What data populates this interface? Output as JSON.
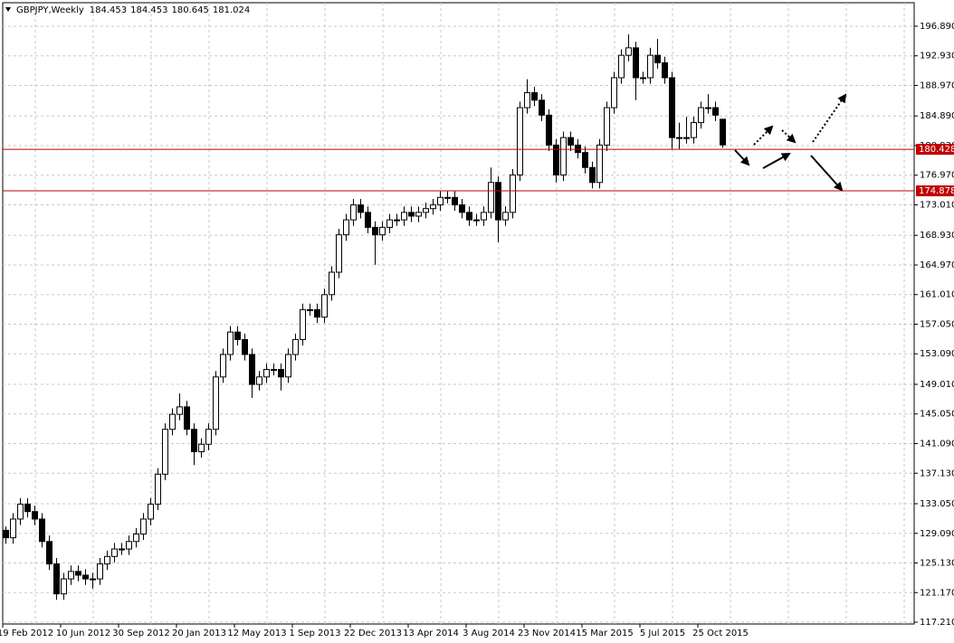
{
  "chart_data": {
    "type": "candlestick",
    "title": "GBPJPY,Weekly",
    "candles": [
      [
        129.5,
        130.0,
        127.7,
        128.5
      ],
      [
        128.5,
        131.8,
        127.7,
        131
      ],
      [
        131,
        133.8,
        130.2,
        133
      ],
      [
        133,
        133.8,
        131.2,
        132
      ],
      [
        132,
        132.8,
        130.2,
        131
      ],
      [
        131,
        131.8,
        127.2,
        128
      ],
      [
        128,
        128.8,
        124.2,
        125
      ],
      [
        125,
        125.8,
        120.2,
        121
      ],
      [
        121,
        123.8,
        120.2,
        123
      ],
      [
        123,
        124.8,
        122.2,
        124
      ],
      [
        124,
        124.8,
        122.7,
        123.5
      ],
      [
        123.5,
        124.3,
        122.2,
        123
      ],
      [
        123,
        123.8,
        121.7,
        123
      ],
      [
        123,
        125.8,
        122.2,
        125
      ],
      [
        125,
        126.8,
        124.2,
        126
      ],
      [
        126,
        127.8,
        125.2,
        127
      ],
      [
        127,
        127.8,
        126.2,
        127
      ],
      [
        127,
        128.8,
        126.2,
        128
      ],
      [
        128,
        129.8,
        127.2,
        129
      ],
      [
        129,
        131.8,
        128.2,
        131
      ],
      [
        131,
        133.8,
        130.2,
        133
      ],
      [
        133,
        137.8,
        132.2,
        137
      ],
      [
        137,
        143.8,
        136.2,
        143
      ],
      [
        143,
        145.8,
        142.2,
        145
      ],
      [
        145,
        147.8,
        144.2,
        146
      ],
      [
        146,
        146.8,
        142.2,
        143
      ],
      [
        143,
        143.8,
        138.2,
        140
      ],
      [
        140,
        141.8,
        139.2,
        141
      ],
      [
        141,
        143.8,
        140.2,
        143
      ],
      [
        143,
        150.8,
        142.2,
        150
      ],
      [
        150,
        153.8,
        149.2,
        153
      ],
      [
        153,
        156.8,
        152.2,
        156
      ],
      [
        156,
        156.8,
        154.2,
        155
      ],
      [
        155,
        155.8,
        152.2,
        153
      ],
      [
        153,
        153.8,
        147.2,
        149
      ],
      [
        149,
        150.8,
        148.2,
        150
      ],
      [
        150,
        151.8,
        149.2,
        151
      ],
      [
        151,
        151.8,
        150.2,
        151
      ],
      [
        151,
        151.8,
        148.2,
        150
      ],
      [
        150,
        153.8,
        149.2,
        153
      ],
      [
        153,
        155.8,
        152.2,
        155
      ],
      [
        155,
        159.8,
        154.2,
        159
      ],
      [
        159,
        159.8,
        158.2,
        159
      ],
      [
        159,
        159.8,
        157.2,
        158
      ],
      [
        158,
        161.8,
        157.2,
        161
      ],
      [
        161,
        164.8,
        160.2,
        164
      ],
      [
        164,
        169.8,
        163.2,
        169
      ],
      [
        169,
        171.8,
        168.2,
        171
      ],
      [
        171,
        173.8,
        170.2,
        173
      ],
      [
        173,
        173.8,
        171.2,
        172
      ],
      [
        172,
        172.8,
        169.2,
        170
      ],
      [
        170,
        170.8,
        165,
        169
      ],
      [
        169,
        170.8,
        168.2,
        170
      ],
      [
        170,
        171.8,
        169.2,
        171
      ],
      [
        171,
        171.8,
        170.2,
        171
      ],
      [
        171,
        172.8,
        170.2,
        172
      ],
      [
        172,
        172.8,
        170.7,
        171.5
      ],
      [
        171.5,
        172.8,
        170.7,
        172
      ],
      [
        172,
        173.3,
        171.2,
        172.5
      ],
      [
        172.5,
        173.8,
        171.7,
        173
      ],
      [
        173,
        174.8,
        172.2,
        174
      ],
      [
        174,
        174.8,
        173.2,
        174
      ],
      [
        174,
        174.8,
        172.2,
        173
      ],
      [
        173,
        173.8,
        171.2,
        172
      ],
      [
        172,
        172.8,
        170.2,
        171
      ],
      [
        171,
        171.8,
        170.2,
        171
      ],
      [
        171,
        172.8,
        170.2,
        172
      ],
      [
        172,
        178,
        171.2,
        176
      ],
      [
        176,
        176.8,
        168,
        171
      ],
      [
        171,
        172.8,
        170.2,
        172
      ],
      [
        172,
        177.8,
        171.2,
        177
      ],
      [
        177,
        186.8,
        176.2,
        186
      ],
      [
        186,
        189.8,
        185.2,
        188
      ],
      [
        188,
        188.8,
        186.2,
        187
      ],
      [
        187,
        187.8,
        184.2,
        185
      ],
      [
        185,
        185.8,
        180.2,
        181
      ],
      [
        181,
        181.8,
        176,
        177
      ],
      [
        177,
        182.8,
        176.2,
        182
      ],
      [
        182,
        182.8,
        180.2,
        181
      ],
      [
        181,
        181.8,
        179.2,
        180
      ],
      [
        180,
        180.8,
        177.2,
        178
      ],
      [
        178,
        178.8,
        175.2,
        176
      ],
      [
        176,
        181.8,
        175.2,
        181
      ],
      [
        181,
        186.8,
        180.2,
        186
      ],
      [
        186,
        190.8,
        185.2,
        190
      ],
      [
        190,
        193.8,
        189.2,
        193
      ],
      [
        193,
        195.8,
        192.2,
        194
      ],
      [
        194,
        194.8,
        187,
        190
      ],
      [
        190,
        190.8,
        189.2,
        190
      ],
      [
        190,
        194,
        189.2,
        193
      ],
      [
        193,
        195.2,
        191.2,
        192
      ],
      [
        192,
        192.8,
        189.2,
        190
      ],
      [
        190,
        190.8,
        180.5,
        182
      ],
      [
        182,
        184,
        180.5,
        182
      ],
      [
        182,
        184.8,
        181.2,
        182
      ],
      [
        182,
        184.8,
        181.2,
        184
      ],
      [
        184,
        186.8,
        183.2,
        186
      ],
      [
        186,
        187.8,
        185.2,
        186
      ],
      [
        186,
        186.8,
        184.2,
        185
      ],
      [
        184.453,
        184.453,
        180.645,
        181.024
      ]
    ],
    "xticks": [
      "19 Feb 2012",
      "10 Jun 2012",
      "30 Sep 2012",
      "20 Jan 2013",
      "12 May 2013",
      "1 Sep 2013",
      "22 Dec 2013",
      "13 Apr 2014",
      "3 Aug 2014",
      "23 Nov 2014",
      "15 Mar 2015",
      "5 Jul 2015",
      "25 Oct 2015"
    ],
    "ylim": [
      116.97,
      200.03
    ],
    "yticks": [
      {
        "value": 196.89,
        "label": "196.890"
      },
      {
        "value": 192.93,
        "label": "192.930"
      },
      {
        "value": 188.97,
        "label": "188.970"
      },
      {
        "value": 184.89,
        "label": "184.890"
      },
      {
        "value": 180.93,
        "label": "180.930"
      },
      {
        "value": 176.97,
        "label": "176.970"
      },
      {
        "value": 173.01,
        "label": "173.010"
      },
      {
        "value": 168.93,
        "label": "168.930"
      },
      {
        "value": 164.97,
        "label": "164.970"
      },
      {
        "value": 161.01,
        "label": "161.010"
      },
      {
        "value": 157.05,
        "label": "157.050"
      },
      {
        "value": 153.09,
        "label": "153.090"
      },
      {
        "value": 149.01,
        "label": "149.010"
      },
      {
        "value": 145.05,
        "label": "145.050"
      },
      {
        "value": 141.09,
        "label": "141.090"
      },
      {
        "value": 137.13,
        "label": "137.130"
      },
      {
        "value": 133.05,
        "label": "133.050"
      },
      {
        "value": 129.09,
        "label": "129.090"
      },
      {
        "value": 125.13,
        "label": "125.130"
      },
      {
        "value": 121.17,
        "label": "121.170"
      },
      {
        "value": 117.21,
        "label": "117.210"
      }
    ],
    "hlines": [
      180.428,
      174.878
    ],
    "hline_color": "#c00000",
    "grid": true
  }
}
